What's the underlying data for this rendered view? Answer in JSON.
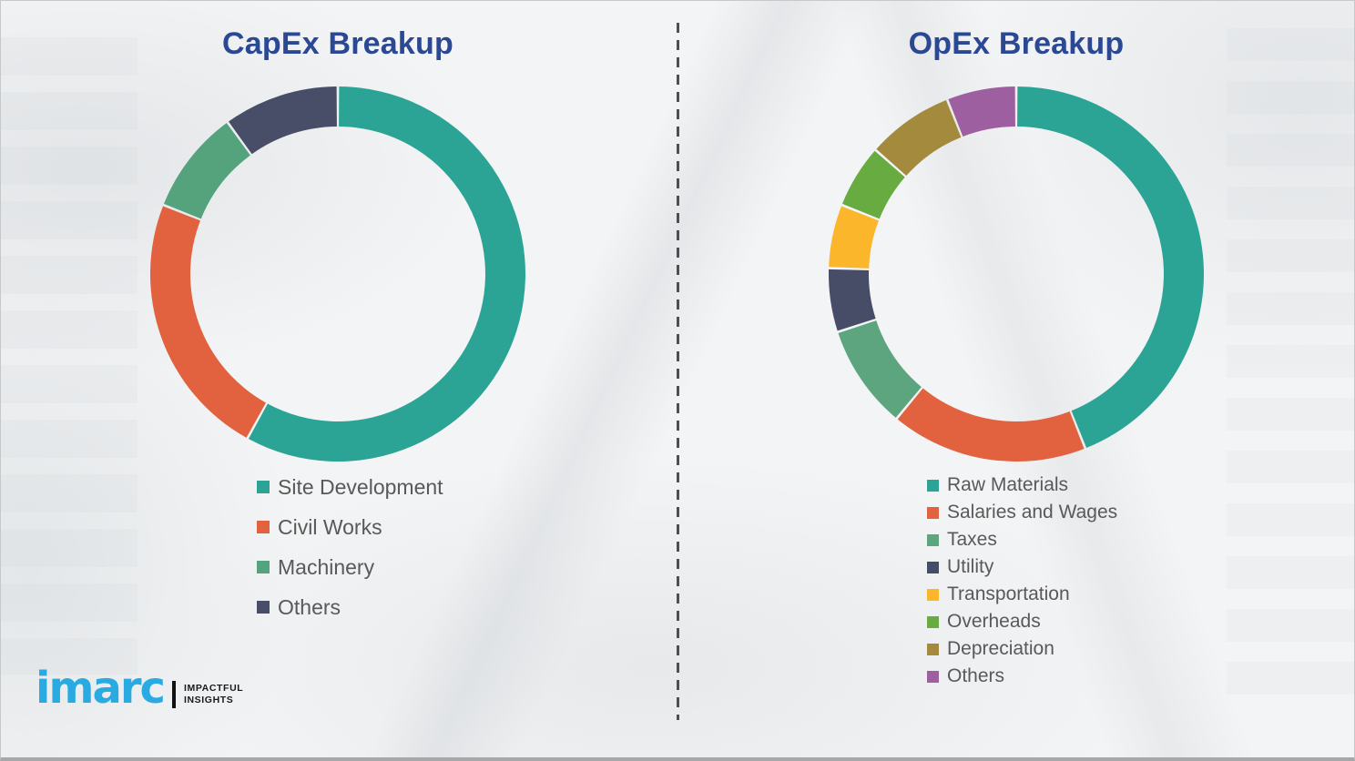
{
  "chart_data": [
    {
      "type": "pie",
      "subtype": "donut",
      "title": "CapEx Breakup",
      "labels": [
        "Site Development",
        "Civil Works",
        "Machinery",
        "Others"
      ],
      "values": [
        58,
        23,
        9,
        10
      ],
      "colors": [
        "#2ba496",
        "#e2613e",
        "#55a37d",
        "#484e67"
      ],
      "start_angle_deg": 0,
      "direction": "clockwise",
      "legend_position": "below-left",
      "data_labels": "none"
    },
    {
      "type": "pie",
      "subtype": "donut",
      "title": "OpEx Breakup",
      "labels": [
        "Raw Materials",
        "Salaries and Wages",
        "Taxes",
        "Utility",
        "Transportation",
        "Overheads",
        "Depreciation",
        "Others"
      ],
      "values": [
        44,
        17,
        9,
        5.5,
        5.5,
        5.5,
        7.5,
        6
      ],
      "colors": [
        "#2ba496",
        "#e2613e",
        "#5ca57f",
        "#474d66",
        "#fbb62c",
        "#68ab41",
        "#a38a3d",
        "#9e5fa0"
      ],
      "start_angle_deg": 0,
      "direction": "clockwise",
      "legend_position": "below-left",
      "data_labels": "none"
    }
  ],
  "logo": {
    "brand": "imarc",
    "tagline_line1": "IMPACTFUL",
    "tagline_line2": "INSIGHTS",
    "brand_color": "#29abe2"
  },
  "colors": {
    "title_text": "#2b4894",
    "legend_text": "#595959",
    "divider": "#4d4f52",
    "background": "#f3f4f5"
  }
}
